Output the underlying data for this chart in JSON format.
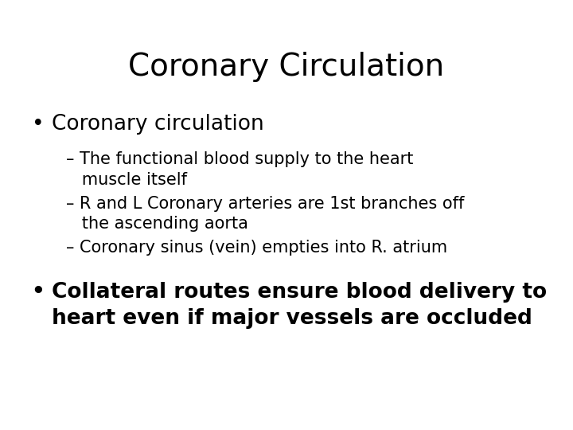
{
  "title": "Coronary Circulation",
  "background_color": "#ffffff",
  "text_color": "#000000",
  "title_fontsize": 28,
  "bullet1": "Coronary circulation",
  "bullet1_fontsize": 19,
  "sub1_line1": "– The functional blood supply to the heart",
  "sub1_line2": "   muscle itself",
  "sub1_fontsize": 15,
  "sub2_line1": "– R and L Coronary arteries are 1st branches off",
  "sub2_line2": "   the ascending aorta",
  "sub2_fontsize": 15,
  "sub3_line1": "– Coronary sinus (vein) empties into R. atrium",
  "sub3_fontsize": 15,
  "bullet2_line1": "Collateral routes ensure blood delivery to",
  "bullet2_line2": "heart even if major vessels are occluded",
  "bullet2_fontsize": 19,
  "font_family": "DejaVu Sans"
}
